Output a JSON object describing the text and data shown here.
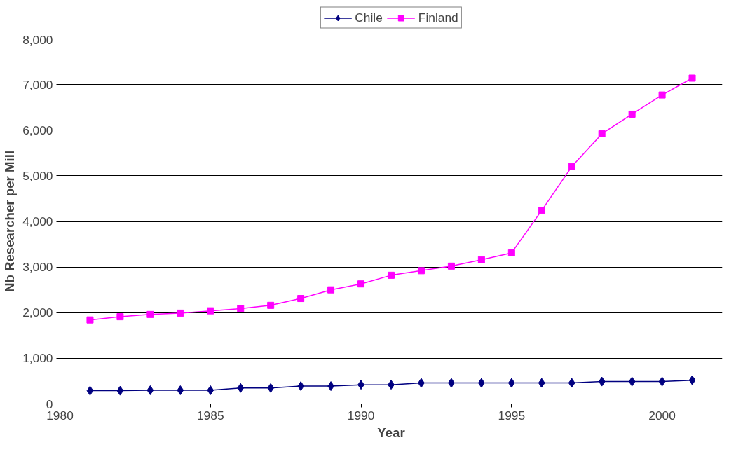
{
  "chart_data": {
    "type": "line",
    "xlabel": "Year",
    "ylabel": "Nb Researcher per Mill",
    "x": [
      1981,
      1982,
      1983,
      1984,
      1985,
      1986,
      1987,
      1988,
      1989,
      1990,
      1991,
      1992,
      1993,
      1994,
      1995,
      1996,
      1997,
      1998,
      1999,
      2000,
      2001
    ],
    "series": [
      {
        "name": "Chile",
        "color": "#000080",
        "marker": "diamond",
        "values": [
          290,
          290,
          300,
          300,
          300,
          350,
          350,
          390,
          390,
          420,
          420,
          460,
          460,
          460,
          460,
          460,
          460,
          490,
          490,
          490,
          520
        ]
      },
      {
        "name": "Finland",
        "color": "#ff00ff",
        "marker": "square",
        "values": [
          1840,
          1910,
          1960,
          1990,
          2040,
          2090,
          2160,
          2310,
          2500,
          2630,
          2820,
          2920,
          3020,
          3160,
          3310,
          4240,
          5200,
          5920,
          6350,
          6770,
          7140
        ]
      }
    ],
    "xlim": [
      1980,
      2002
    ],
    "xticks": [
      1980,
      1985,
      1990,
      1995,
      2000
    ],
    "ylim": [
      0,
      8000
    ],
    "yticks": [
      0,
      {
        "value": 1000,
        "label": "1,000"
      },
      {
        "value": 2000,
        "label": "2,000"
      },
      {
        "value": 3000,
        "label": "3,000"
      },
      {
        "value": 4000,
        "label": "4,000"
      },
      {
        "value": 5000,
        "label": "5,000"
      },
      {
        "value": 6000,
        "label": "6,000"
      },
      {
        "value": 7000,
        "label": "7,000"
      },
      {
        "value": 8000,
        "label": "8,000"
      }
    ],
    "grid": "y",
    "legend": "top",
    "line_style": "solid"
  }
}
